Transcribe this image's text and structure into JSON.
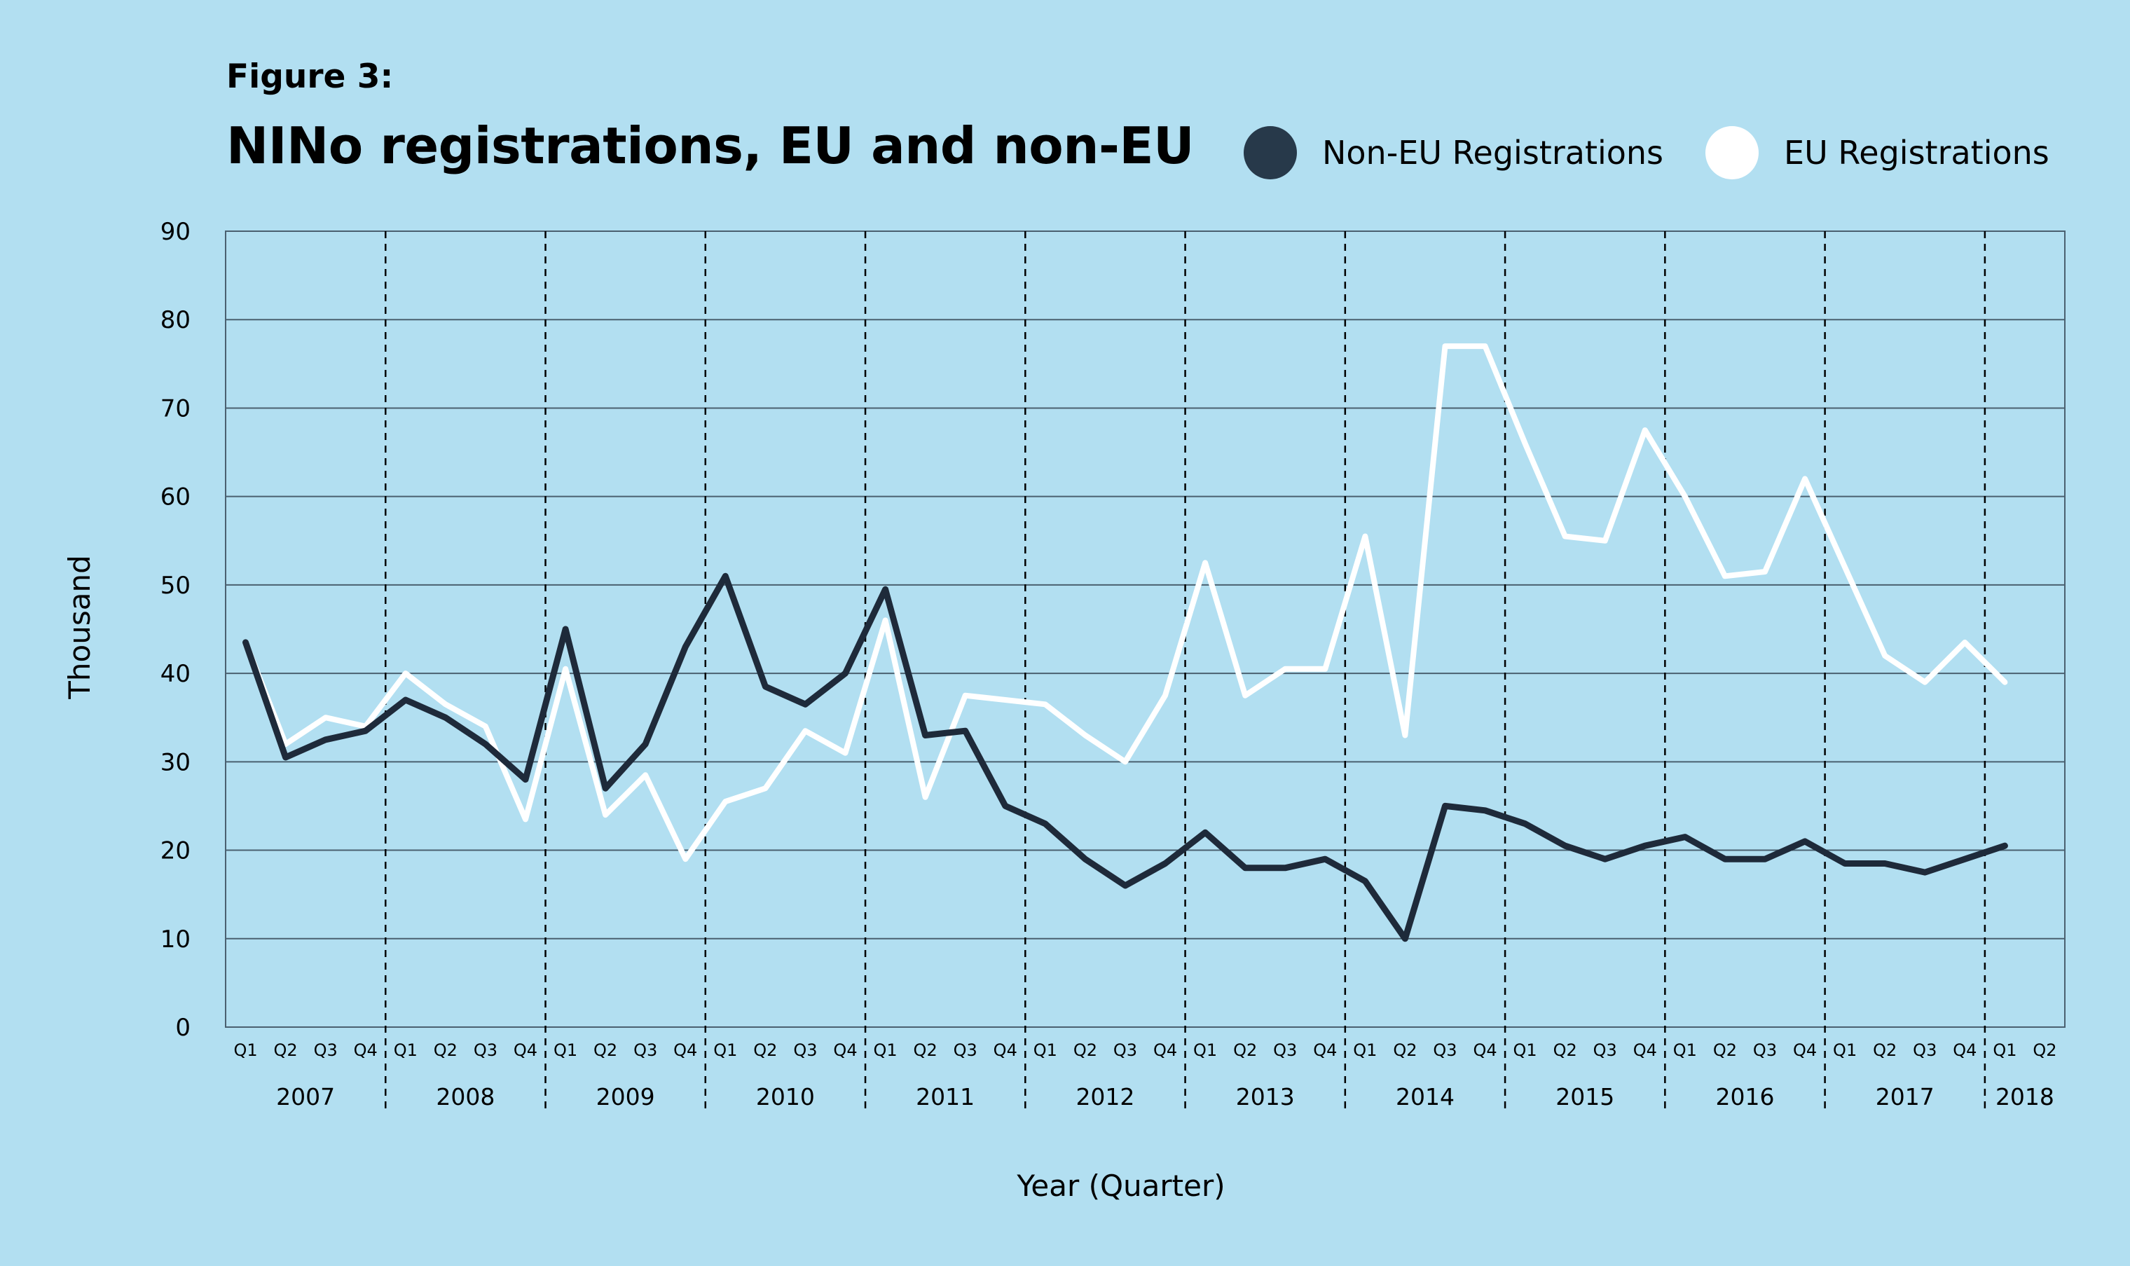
{
  "figure_label": "Figure 3:",
  "title": "NINo registrations, EU and non-EU",
  "legend": [
    {
      "label": "Non-EU Registrations",
      "color": "#1e2a3a"
    },
    {
      "label": "EU Registrations",
      "color": "#ffffff"
    }
  ],
  "colors": {
    "background": "#b2dff1",
    "non_eu": "#1e2a3a",
    "eu": "#ffffff",
    "grid": "#4a6070"
  },
  "chart_data": {
    "type": "line",
    "title": "NINo registrations, EU and non-EU",
    "xlabel": "Year (Quarter)",
    "ylabel": "Thousand",
    "ylim": [
      0,
      90
    ],
    "yticks": [
      0,
      10,
      20,
      30,
      40,
      50,
      60,
      70,
      80,
      90
    ],
    "grid": true,
    "legend_position": "top-right",
    "years": [
      "2007",
      "2008",
      "2009",
      "2010",
      "2011",
      "2012",
      "2013",
      "2014",
      "2015",
      "2016",
      "2017",
      "2018"
    ],
    "quarter_labels": [
      "Q1",
      "Q2",
      "Q3",
      "Q4"
    ],
    "n_slots": 46,
    "x": [
      "2007 Q1",
      "2007 Q2",
      "2007 Q3",
      "2007 Q4",
      "2008 Q1",
      "2008 Q2",
      "2008 Q3",
      "2008 Q4",
      "2009 Q1",
      "2009 Q2",
      "2009 Q3",
      "2009 Q4",
      "2010 Q1",
      "2010 Q2",
      "2010 Q3",
      "2010 Q4",
      "2011 Q1",
      "2011 Q2",
      "2011 Q3",
      "2011 Q4",
      "2012 Q1",
      "2012 Q2",
      "2012 Q3",
      "2012 Q4",
      "2013 Q1",
      "2013 Q2",
      "2013 Q3",
      "2013 Q4",
      "2014 Q1",
      "2014 Q2",
      "2014 Q3",
      "2014 Q4",
      "2015 Q1",
      "2015 Q2",
      "2015 Q3",
      "2015 Q4",
      "2016 Q1",
      "2016 Q2",
      "2016 Q3",
      "2016 Q4",
      "2017 Q1",
      "2017 Q2",
      "2017 Q3",
      "2017 Q4",
      "2018 Q1"
    ],
    "series": [
      {
        "name": "Non-EU Registrations",
        "color": "#1e2a3a",
        "values": [
          43.5,
          30.5,
          32.5,
          33.5,
          37,
          35,
          32,
          28,
          45,
          27,
          32,
          43,
          51,
          38.5,
          36.5,
          40,
          49.5,
          33,
          33.5,
          25,
          23,
          19,
          16,
          18.5,
          22,
          18,
          18,
          19,
          16.5,
          10,
          25,
          24.5,
          23,
          20.5,
          19,
          20.5,
          21.5,
          19,
          19,
          21,
          18.5,
          18.5,
          17.5,
          19,
          20.5
        ]
      },
      {
        "name": "EU Registrations",
        "color": "#ffffff",
        "values": [
          43.5,
          32,
          35,
          34,
          40,
          36.5,
          34,
          23.5,
          40.5,
          24,
          28.5,
          19,
          25.5,
          27,
          33.5,
          31,
          46,
          26,
          37.5,
          37,
          36.5,
          33,
          30,
          37.5,
          52.5,
          37.5,
          40.5,
          40.5,
          55.5,
          33,
          77,
          77,
          66,
          55.5,
          55,
          67.5,
          60,
          51,
          51.5,
          62,
          52,
          42,
          39,
          43.5,
          39
        ]
      }
    ]
  }
}
